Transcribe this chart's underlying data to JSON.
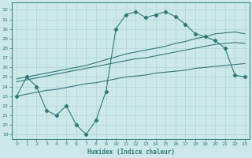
{
  "xlabel": "Humidex (Indice chaleur)",
  "bg_color": "#cde8e8",
  "line_color": "#2d7a7a",
  "grid_color": "#b0d4d4",
  "xlim": [
    -0.5,
    23.5
  ],
  "ylim": [
    18.5,
    32.8
  ],
  "xticks": [
    0,
    1,
    2,
    3,
    4,
    5,
    6,
    7,
    8,
    9,
    10,
    11,
    12,
    13,
    14,
    15,
    16,
    17,
    18,
    19,
    20,
    21,
    22,
    23
  ],
  "yticks": [
    19,
    20,
    21,
    22,
    23,
    24,
    25,
    26,
    27,
    28,
    29,
    30,
    31,
    32
  ],
  "line_main_x": [
    0,
    1,
    2,
    3,
    4,
    5,
    6,
    7,
    8,
    9,
    10,
    11,
    12,
    13,
    14,
    15,
    16,
    17,
    18,
    19,
    20,
    21,
    22,
    23
  ],
  "line_main_y": [
    23.0,
    25.0,
    24.0,
    21.5,
    21.0,
    22.0,
    20.0,
    19.0,
    20.5,
    23.5,
    30.0,
    31.5,
    31.8,
    31.2,
    31.5,
    31.8,
    31.3,
    30.5,
    29.5,
    29.2,
    28.8,
    28.0,
    25.2,
    25.0
  ],
  "line_upper_x": [
    0,
    1,
    2,
    3,
    4,
    5,
    6,
    7,
    8,
    9,
    10,
    11,
    12,
    13,
    14,
    15,
    16,
    17,
    18,
    19,
    20,
    21,
    22,
    23
  ],
  "line_upper_y": [
    24.8,
    25.0,
    25.2,
    25.4,
    25.6,
    25.8,
    26.0,
    26.2,
    26.5,
    26.8,
    27.1,
    27.4,
    27.6,
    27.8,
    28.0,
    28.2,
    28.5,
    28.7,
    29.0,
    29.2,
    29.5,
    29.6,
    29.7,
    29.5
  ],
  "line_mid_x": [
    0,
    1,
    2,
    3,
    4,
    5,
    6,
    7,
    8,
    9,
    10,
    11,
    12,
    13,
    14,
    15,
    16,
    17,
    18,
    19,
    20,
    21,
    22,
    23
  ],
  "line_mid_y": [
    24.5,
    24.7,
    24.9,
    25.1,
    25.3,
    25.5,
    25.7,
    25.9,
    26.1,
    26.3,
    26.5,
    26.7,
    26.9,
    27.0,
    27.2,
    27.4,
    27.6,
    27.8,
    28.0,
    28.2,
    28.4,
    28.5,
    28.6,
    28.5
  ],
  "line_lower_x": [
    0,
    1,
    2,
    3,
    4,
    5,
    6,
    7,
    8,
    9,
    10,
    11,
    12,
    13,
    14,
    15,
    16,
    17,
    18,
    19,
    20,
    21,
    22,
    23
  ],
  "line_lower_y": [
    23.0,
    23.2,
    23.4,
    23.6,
    23.7,
    23.9,
    24.1,
    24.3,
    24.4,
    24.6,
    24.8,
    25.0,
    25.1,
    25.2,
    25.4,
    25.5,
    25.6,
    25.7,
    25.9,
    26.0,
    26.1,
    26.2,
    26.3,
    26.4
  ]
}
